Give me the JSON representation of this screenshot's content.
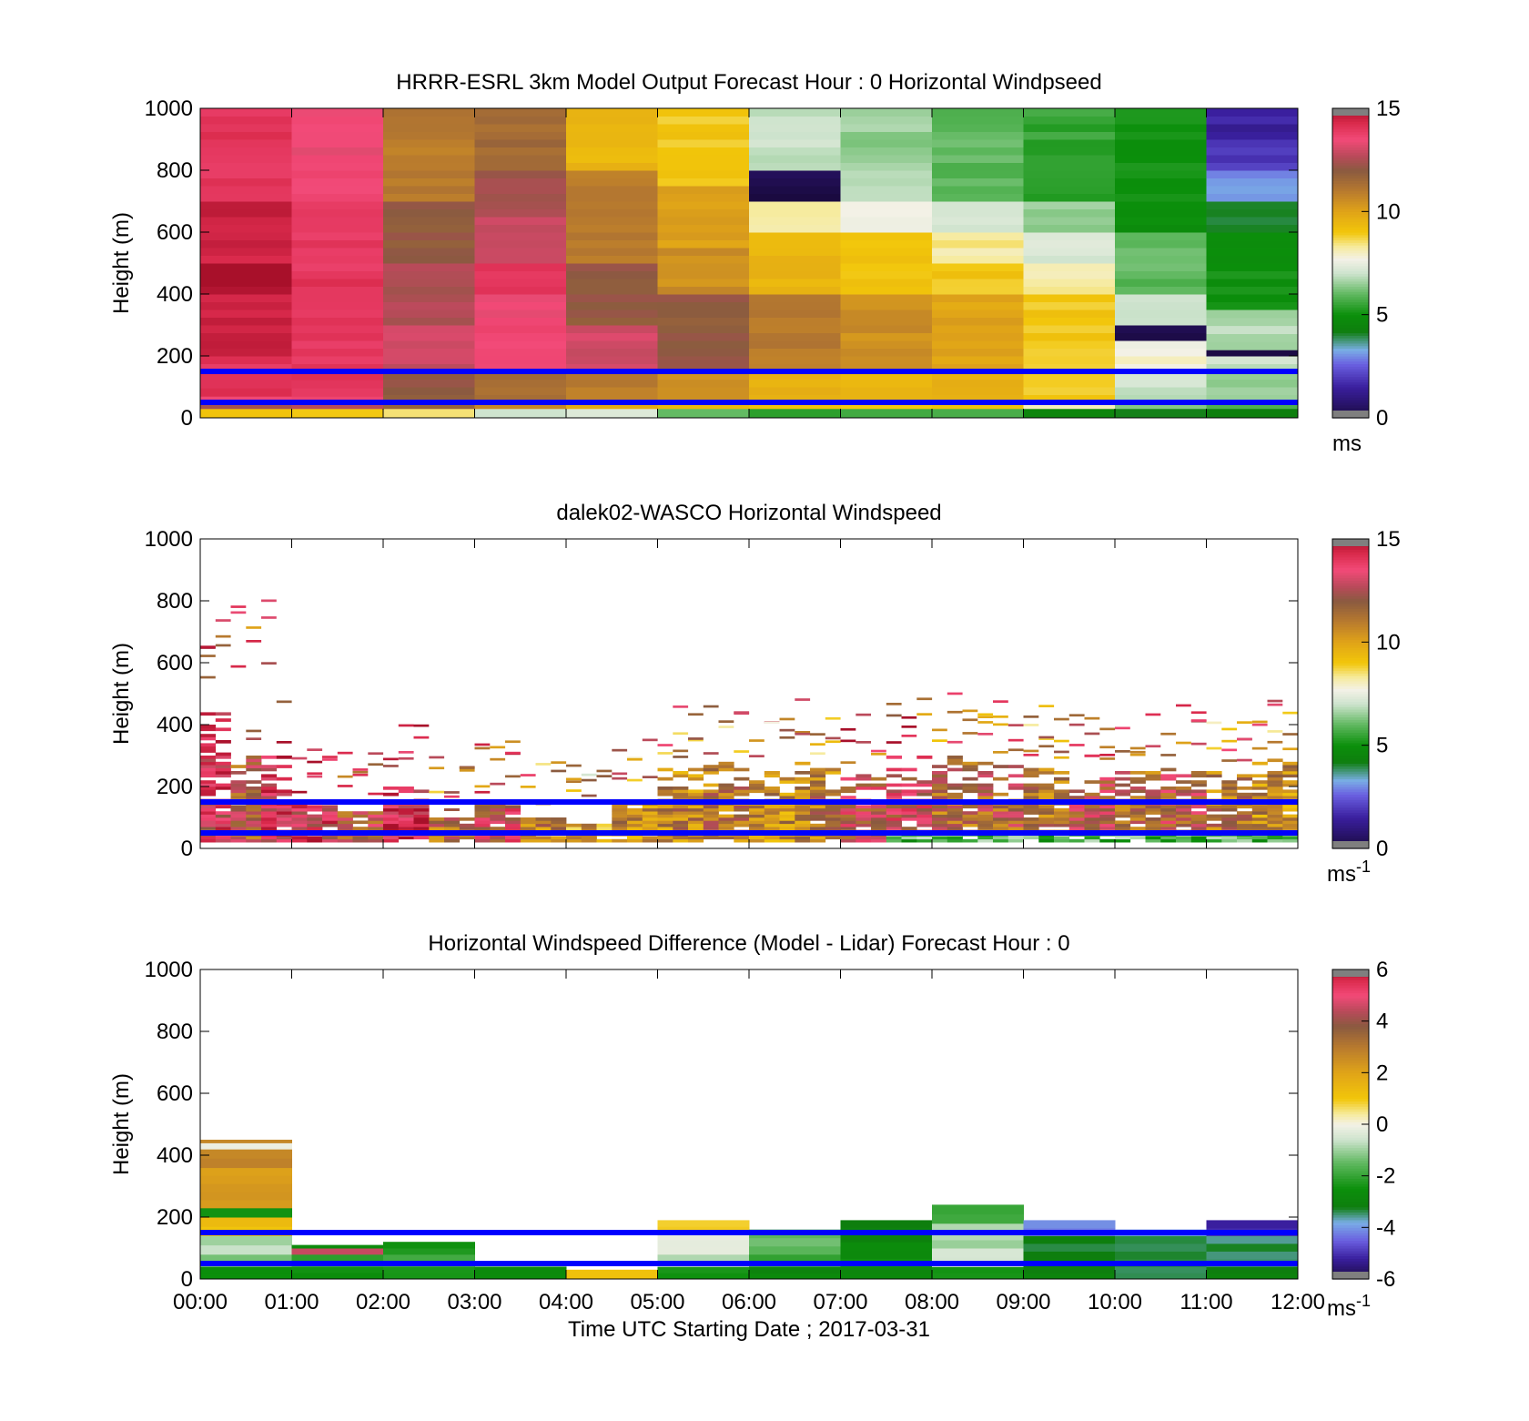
{
  "chart_data": [
    {
      "type": "heatmap",
      "title": "HRRR-ESRL 3km Model Output   Forecast Hour : 0 Horizontal Windpseed",
      "ylabel": "Height (m)",
      "xlabel": "",
      "xlim": [
        "00:00",
        "12:00"
      ],
      "ylim": [
        0,
        1000
      ],
      "yticks": [
        0,
        200,
        400,
        600,
        800,
        1000
      ],
      "colorbar": {
        "ticks": [
          0,
          5,
          10,
          15
        ],
        "unit": "ms",
        "unit_sup": "",
        "range": [
          0,
          15
        ],
        "kind": "speed"
      },
      "reference_lines_m": [
        150,
        50
      ],
      "grid": false,
      "mode": "model",
      "hours": [
        {
          "hour": "00:00",
          "speeds": [
            [
              0,
              30,
              9
            ],
            [
              30,
              50,
              12.5
            ],
            [
              50,
              70,
              13.5
            ],
            [
              70,
              150,
              14
            ],
            [
              150,
              200,
              14
            ],
            [
              200,
              400,
              14.5
            ],
            [
              400,
              500,
              15
            ],
            [
              500,
              700,
              14.5
            ],
            [
              700,
              1000,
              14
            ]
          ]
        },
        {
          "hour": "01:00",
          "speeds": [
            [
              0,
              30,
              9
            ],
            [
              30,
              50,
              12.5
            ],
            [
              50,
              70,
              13.5
            ],
            [
              70,
              150,
              14
            ],
            [
              150,
              300,
              14
            ],
            [
              300,
              700,
              14
            ],
            [
              700,
              1000,
              13.5
            ]
          ]
        },
        {
          "hour": "02:00",
          "speeds": [
            [
              0,
              30,
              8.5
            ],
            [
              30,
              50,
              11.5
            ],
            [
              50,
              150,
              12
            ],
            [
              150,
              300,
              13
            ],
            [
              300,
              500,
              12.5
            ],
            [
              500,
              700,
              12
            ],
            [
              700,
              1000,
              11
            ]
          ]
        },
        {
          "hour": "03:00",
          "speeds": [
            [
              0,
              30,
              7
            ],
            [
              30,
              50,
              10.5
            ],
            [
              50,
              150,
              11.5
            ],
            [
              150,
              400,
              13.5
            ],
            [
              400,
              500,
              14
            ],
            [
              500,
              650,
              13
            ],
            [
              650,
              800,
              12.3
            ],
            [
              800,
              1000,
              11.5
            ]
          ]
        },
        {
          "hour": "04:00",
          "speeds": [
            [
              0,
              30,
              7.5
            ],
            [
              30,
              50,
              10
            ],
            [
              50,
              150,
              11
            ],
            [
              150,
              300,
              13
            ],
            [
              300,
              500,
              12
            ],
            [
              500,
              800,
              11
            ],
            [
              800,
              1000,
              9.5
            ]
          ]
        },
        {
          "hour": "05:00",
          "speeds": [
            [
              0,
              30,
              6
            ],
            [
              30,
              50,
              9.5
            ],
            [
              50,
              150,
              10.5
            ],
            [
              150,
              400,
              12
            ],
            [
              400,
              550,
              10.5
            ],
            [
              550,
              750,
              10
            ],
            [
              750,
              1000,
              9
            ]
          ]
        },
        {
          "hour": "06:00",
          "speeds": [
            [
              0,
              30,
              5.5
            ],
            [
              30,
              50,
              9
            ],
            [
              50,
              150,
              9.5
            ],
            [
              150,
              400,
              11
            ],
            [
              400,
              600,
              9.5
            ],
            [
              600,
              700,
              8.3
            ],
            [
              700,
              800,
              0.2
            ],
            [
              800,
              1000,
              7
            ]
          ]
        },
        {
          "hour": "07:00",
          "speeds": [
            [
              0,
              30,
              5.5
            ],
            [
              30,
              50,
              9
            ],
            [
              50,
              150,
              9.5
            ],
            [
              150,
              400,
              10.5
            ],
            [
              400,
              600,
              9
            ],
            [
              600,
              700,
              7.6
            ],
            [
              700,
              800,
              7
            ],
            [
              800,
              1000,
              6.5
            ]
          ]
        },
        {
          "hour": "08:00",
          "speeds": [
            [
              0,
              30,
              5.5
            ],
            [
              30,
              50,
              9
            ],
            [
              50,
              150,
              9.5
            ],
            [
              150,
              400,
              10
            ],
            [
              400,
              500,
              9
            ],
            [
              500,
              600,
              8.3
            ],
            [
              600,
              700,
              7
            ],
            [
              700,
              1000,
              6
            ]
          ]
        },
        {
          "hour": "09:00",
          "speeds": [
            [
              0,
              30,
              4.5
            ],
            [
              30,
              50,
              8
            ],
            [
              50,
              150,
              9
            ],
            [
              150,
              400,
              9
            ],
            [
              400,
              500,
              8.3
            ],
            [
              500,
              600,
              7.2
            ],
            [
              600,
              700,
              6.5
            ],
            [
              700,
              1000,
              5.5
            ]
          ]
        },
        {
          "hour": "10:00",
          "speeds": [
            [
              0,
              30,
              4
            ],
            [
              30,
              50,
              6.5
            ],
            [
              50,
              150,
              7
            ],
            [
              150,
              250,
              7.8
            ],
            [
              250,
              300,
              0.2
            ],
            [
              300,
              400,
              7
            ],
            [
              400,
              600,
              6
            ],
            [
              600,
              1000,
              5
            ]
          ]
        },
        {
          "hour": "11:00",
          "speeds": [
            [
              0,
              30,
              4
            ],
            [
              30,
              50,
              6
            ],
            [
              50,
              150,
              6.5
            ],
            [
              150,
              200,
              7
            ],
            [
              200,
              220,
              0.2
            ],
            [
              220,
              350,
              6.8
            ],
            [
              350,
              600,
              5
            ],
            [
              600,
              700,
              4
            ],
            [
              700,
              800,
              3
            ],
            [
              800,
              900,
              2
            ],
            [
              900,
              1000,
              1.5
            ]
          ]
        }
      ]
    },
    {
      "type": "heatmap",
      "title": "dalek02-WASCO  Horizontal Windspeed",
      "ylabel": "Height (m)",
      "xlabel": "",
      "xlim": [
        "00:00",
        "12:00"
      ],
      "ylim": [
        0,
        1000
      ],
      "yticks": [
        0,
        200,
        400,
        600,
        800,
        1000
      ],
      "colorbar": {
        "ticks": [
          0,
          5,
          10,
          15
        ],
        "unit": "ms",
        "unit_sup": "-1",
        "range": [
          0,
          15
        ],
        "kind": "speed"
      },
      "reference_lines_m": [
        150,
        50
      ],
      "grid": false,
      "mode": "lidar",
      "segments": [
        {
          "t0": "00:00",
          "t1": "00:20",
          "top": 450,
          "speed": 13.5
        },
        {
          "t0": "00:20",
          "t1": "00:40",
          "top": 300,
          "speed": 12
        },
        {
          "t0": "00:40",
          "t1": "01:00",
          "top": 300,
          "speed": 13.8
        },
        {
          "t0": "01:00",
          "t1": "01:30",
          "top": 150,
          "speed": 13.5
        },
        {
          "t0": "01:30",
          "t1": "02:00",
          "top": 120,
          "speed": 12.2
        },
        {
          "t0": "02:00",
          "t1": "02:30",
          "top": 200,
          "speed": 14
        },
        {
          "t0": "02:30",
          "t1": "03:00",
          "top": 100,
          "speed": 11.5
        },
        {
          "t0": "03:00",
          "t1": "03:30",
          "top": 150,
          "speed": 12.8
        },
        {
          "t0": "03:30",
          "t1": "04:00",
          "top": 100,
          "speed": 11
        },
        {
          "t0": "04:00",
          "t1": "04:30",
          "top": 80,
          "speed": 10
        },
        {
          "t0": "04:30",
          "t1": "05:00",
          "top": 150,
          "speed": 10.5
        },
        {
          "t0": "05:00",
          "t1": "05:30",
          "top": 260,
          "speed": 10.8
        },
        {
          "t0": "05:30",
          "t1": "06:00",
          "top": 280,
          "speed": 11.2
        },
        {
          "t0": "06:00",
          "t1": "06:30",
          "top": 270,
          "speed": 10.5
        },
        {
          "t0": "06:30",
          "t1": "07:00",
          "top": 280,
          "speed": 11
        },
        {
          "t0": "07:00",
          "t1": "07:30",
          "top": 240,
          "speed": 12.5
        },
        {
          "t0": "07:30",
          "t1": "08:00",
          "top": 300,
          "speed": 12.8
        },
        {
          "t0": "08:00",
          "t1": "08:30",
          "top": 300,
          "speed": 11.5
        },
        {
          "t0": "08:30",
          "t1": "09:00",
          "top": 280,
          "speed": 11.8
        },
        {
          "t0": "09:00",
          "t1": "09:30",
          "top": 260,
          "speed": 11.2
        },
        {
          "t0": "09:30",
          "t1": "10:00",
          "top": 230,
          "speed": 12.5
        },
        {
          "t0": "10:00",
          "t1": "10:30",
          "top": 260,
          "speed": 11.5
        },
        {
          "t0": "10:30",
          "t1": "11:00",
          "top": 270,
          "speed": 12.2
        },
        {
          "t0": "11:00",
          "t1": "11:30",
          "top": 250,
          "speed": 11
        },
        {
          "t0": "11:30",
          "t1": "12:00",
          "top": 290,
          "speed": 10.5
        }
      ]
    },
    {
      "type": "heatmap",
      "title": "Horizontal Windspeed Difference (Model - Lidar) Forecast Hour : 0",
      "ylabel": "Height (m)",
      "xlabel": "Time UTC  Starting Date ; 2017-03-31",
      "xticks": [
        "00:00",
        "01:00",
        "02:00",
        "03:00",
        "04:00",
        "05:00",
        "06:00",
        "07:00",
        "08:00",
        "09:00",
        "10:00",
        "11:00",
        "12:00"
      ],
      "xlim": [
        "00:00",
        "12:00"
      ],
      "ylim": [
        0,
        1000
      ],
      "yticks": [
        0,
        200,
        400,
        600,
        800,
        1000
      ],
      "colorbar": {
        "ticks": [
          -6,
          -4,
          -2,
          0,
          2,
          4,
          6
        ],
        "unit": "ms",
        "unit_sup": "-1",
        "range": [
          -6,
          6
        ],
        "kind": "diff"
      },
      "reference_lines_m": [
        150,
        50
      ],
      "grid": false,
      "mode": "diff",
      "hours": [
        {
          "hour": "00:00",
          "speeds": [
            [
              0,
              40,
              -2.5
            ],
            [
              40,
              80,
              -1.5
            ],
            [
              80,
              140,
              -0.8
            ],
            [
              140,
              200,
              1.2
            ],
            [
              200,
              230,
              -2.3
            ],
            [
              230,
              360,
              2.2
            ],
            [
              360,
              420,
              2.8
            ],
            [
              420,
              440,
              -0.3
            ],
            [
              440,
              450,
              2.5
            ]
          ]
        },
        {
          "hour": "01:00",
          "speeds": [
            [
              0,
              40,
              -2.5
            ],
            [
              40,
              80,
              -2
            ],
            [
              80,
              100,
              4.5
            ],
            [
              100,
              110,
              -2.5
            ]
          ]
        },
        {
          "hour": "02:00",
          "speeds": [
            [
              0,
              40,
              -2.2
            ],
            [
              40,
              80,
              -1.8
            ],
            [
              80,
              120,
              -2.4
            ]
          ]
        },
        {
          "hour": "03:00",
          "speeds": [
            [
              0,
              40,
              -2.6
            ]
          ]
        },
        {
          "hour": "04:00",
          "speeds": [
            [
              0,
              30,
              1.2
            ]
          ]
        },
        {
          "hour": "05:00",
          "speeds": [
            [
              0,
              40,
              -2.5
            ],
            [
              40,
              80,
              -0.8
            ],
            [
              80,
              150,
              -0.3
            ],
            [
              150,
              190,
              1
            ]
          ]
        },
        {
          "hour": "06:00",
          "speeds": [
            [
              0,
              40,
              -2.8
            ],
            [
              40,
              80,
              -2
            ],
            [
              80,
              160,
              -1.4
            ]
          ]
        },
        {
          "hour": "07:00",
          "speeds": [
            [
              0,
              40,
              -2.8
            ],
            [
              40,
              120,
              -2.6
            ],
            [
              120,
              190,
              -3
            ]
          ]
        },
        {
          "hour": "08:00",
          "speeds": [
            [
              0,
              40,
              -2.5
            ],
            [
              40,
              100,
              -0.5
            ],
            [
              100,
              180,
              -0.9
            ],
            [
              180,
              240,
              -2
            ]
          ]
        },
        {
          "hour": "09:00",
          "speeds": [
            [
              0,
              40,
              -3
            ],
            [
              40,
              140,
              -3.2
            ],
            [
              140,
              190,
              -4.2
            ]
          ]
        },
        {
          "hour": "10:00",
          "speeds": [
            [
              0,
              40,
              -3.5
            ],
            [
              40,
              140,
              -3.3
            ],
            [
              140,
              160,
              -3.8
            ]
          ]
        },
        {
          "hour": "11:00",
          "speeds": [
            [
              0,
              40,
              -3
            ],
            [
              40,
              140,
              -3.4
            ],
            [
              140,
              190,
              -5.2
            ]
          ]
        }
      ]
    }
  ]
}
